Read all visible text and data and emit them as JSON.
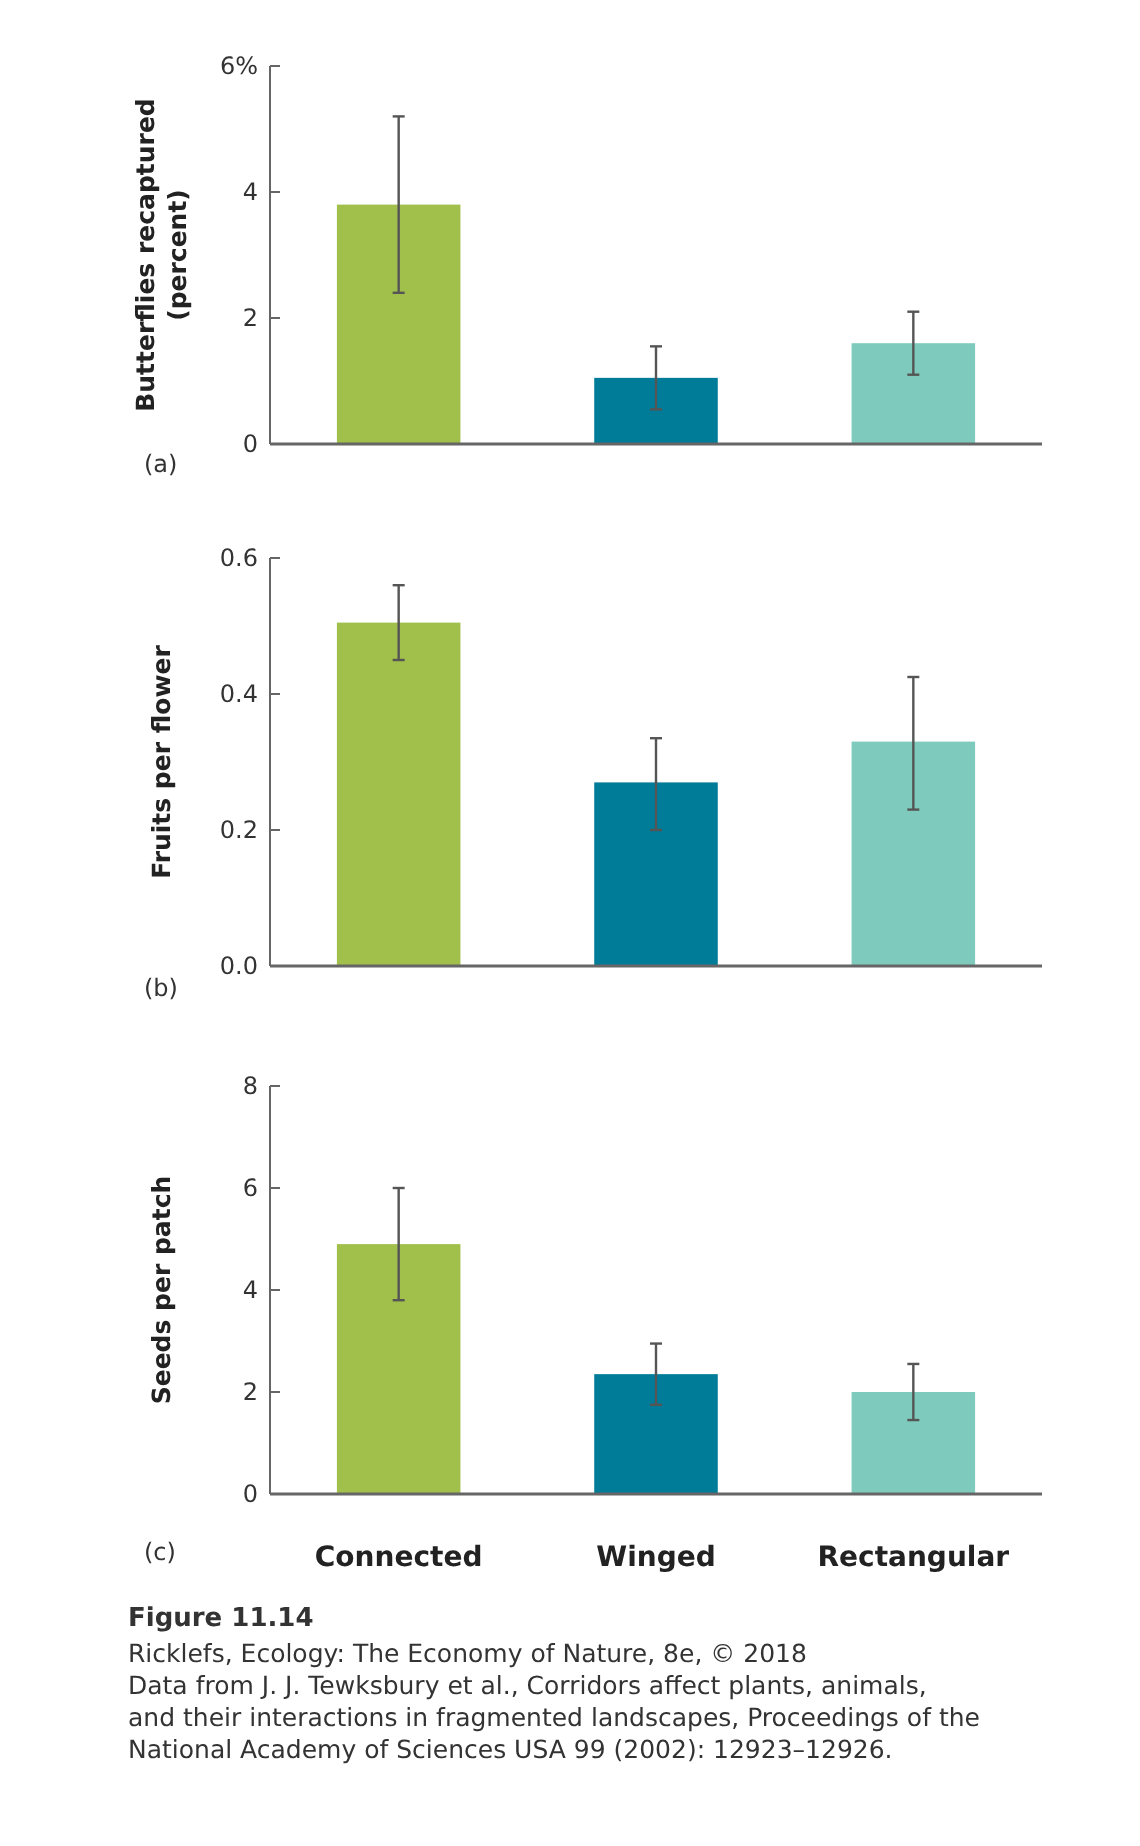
{
  "chart_data": [
    {
      "type": "bar",
      "ylabel": "Butterflies recaptured\n(percent)",
      "categories": [
        null,
        null,
        null
      ],
      "values": [
        3.8,
        1.05,
        1.6
      ],
      "colors": [
        "#a1c04b",
        "#007b98",
        "#7ecbbd"
      ],
      "errors": [
        [
          2.4,
          5.2
        ],
        [
          0.55,
          1.55
        ],
        [
          1.1,
          2.1
        ]
      ],
      "ylim": [
        0,
        6
      ],
      "yticks": [
        0,
        2,
        4,
        {
          "value": 6,
          "label": "6%"
        }
      ],
      "tick_labels": "y",
      "annotations": [
        "(a)"
      ]
    },
    {
      "type": "bar",
      "ylabel": "Fruits per flower",
      "categories": [
        null,
        null,
        null
      ],
      "values": [
        0.505,
        0.27,
        0.33
      ],
      "colors": [
        "#a1c04b",
        "#007b98",
        "#7ecbbd"
      ],
      "errors": [
        [
          0.45,
          0.56
        ],
        [
          0.2,
          0.335
        ],
        [
          0.23,
          0.425
        ]
      ],
      "ylim": [
        0,
        0.6
      ],
      "yticks": [
        {
          "value": 0,
          "label": "0.0"
        },
        0.2,
        0.4,
        0.6
      ],
      "tick_labels": "y",
      "annotations": [
        "(b)"
      ]
    },
    {
      "type": "bar",
      "ylabel": "Seeds per patch",
      "categories": [
        "Connected",
        "Winged",
        "Rectangular"
      ],
      "values": [
        4.9,
        2.35,
        2.0
      ],
      "colors": [
        "#a1c04b",
        "#007b98",
        "#7ecbbd"
      ],
      "errors": [
        [
          3.8,
          6.0
        ],
        [
          1.75,
          2.95
        ],
        [
          1.45,
          2.55
        ]
      ],
      "ylim": [
        0,
        8
      ],
      "yticks": [
        0,
        2,
        4,
        6,
        8
      ],
      "annotations": [
        "(c)",
        "Figure 11.14",
        "Ricklefs, Ecology: The Economy of Nature, 8e, © 2018",
        "Data from J. J. Tewksbury et al., Corridors affect plants, animals, and their interactions in fragmented landscapes, Proceedings of the National Academy of Sciences USA 99 (2002): 12923–12926."
      ]
    }
  ]
}
